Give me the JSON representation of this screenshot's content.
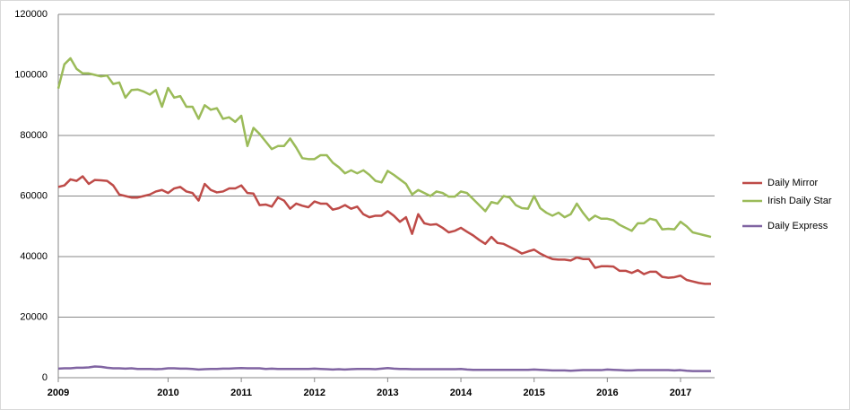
{
  "chart_data": {
    "type": "line",
    "categories": [
      "2009",
      null,
      null,
      null,
      null,
      null,
      null,
      null,
      null,
      null,
      null,
      null,
      null,
      null,
      null,
      null,
      null,
      null,
      "2010",
      null,
      null,
      null,
      null,
      null,
      null,
      null,
      null,
      null,
      null,
      null,
      "2011",
      null,
      null,
      null,
      null,
      null,
      null,
      null,
      null,
      null,
      null,
      null,
      "2012",
      null,
      null,
      null,
      null,
      null,
      null,
      null,
      null,
      null,
      null,
      null,
      "2013",
      null,
      null,
      null,
      null,
      null,
      null,
      null,
      null,
      null,
      null,
      null,
      "2014",
      null,
      null,
      null,
      null,
      null,
      null,
      null,
      null,
      null,
      null,
      null,
      "2015",
      null,
      null,
      null,
      null,
      null,
      null,
      null,
      null,
      null,
      null,
      null,
      "2016",
      null,
      null,
      null,
      null,
      null,
      null,
      null,
      null,
      null,
      null,
      null,
      "2017",
      null,
      null,
      null,
      null,
      null
    ],
    "series": [
      {
        "name": "Daily Mirror",
        "color": "#be4b48",
        "values": [
          63000,
          63500,
          65500,
          65000,
          66500,
          64000,
          65300,
          65200,
          65000,
          63500,
          60500,
          60000,
          59500,
          59500,
          60000,
          60500,
          61500,
          62000,
          61000,
          62500,
          63000,
          61500,
          61000,
          58500,
          64000,
          62000,
          61200,
          61500,
          62500,
          62500,
          63500,
          61000,
          60800,
          57000,
          57200,
          56500,
          59500,
          58500,
          55800,
          57500,
          56800,
          56300,
          58200,
          57500,
          57500,
          55500,
          56000,
          57000,
          55800,
          56500,
          54000,
          53000,
          53500,
          53500,
          55000,
          53500,
          51500,
          53000,
          47500,
          54000,
          51000,
          50500,
          50700,
          49500,
          48000,
          48500,
          49500,
          48200,
          47000,
          45500,
          44200,
          46500,
          44500,
          44200,
          43200,
          42200,
          41000,
          41700,
          42300,
          41000,
          40000,
          39200,
          39000,
          39000,
          38700,
          39700,
          39200,
          39200,
          36300,
          36800,
          36800,
          36700,
          35300,
          35300,
          34600,
          35500,
          34200,
          35000,
          35000,
          33300,
          33000,
          33200,
          33700,
          32300,
          31800,
          31300,
          31000,
          31000
        ]
      },
      {
        "name": "Irish Daily Star",
        "color": "#9bbb59",
        "values": [
          95500,
          103500,
          105500,
          102000,
          100500,
          100500,
          100000,
          99500,
          99800,
          97000,
          97500,
          92500,
          95000,
          95200,
          94500,
          93500,
          95000,
          89500,
          95700,
          92500,
          93000,
          89500,
          89500,
          85500,
          90000,
          88500,
          89000,
          85500,
          86000,
          84500,
          86500,
          76500,
          82500,
          80500,
          78000,
          75500,
          76500,
          76500,
          79000,
          76000,
          72500,
          72200,
          72200,
          73500,
          73500,
          71000,
          69500,
          67500,
          68500,
          67500,
          68500,
          67000,
          65000,
          64500,
          68300,
          67000,
          65500,
          64000,
          60500,
          62000,
          61000,
          60000,
          61500,
          61000,
          59800,
          59800,
          61500,
          61000,
          59000,
          57000,
          55000,
          58000,
          57500,
          60000,
          59500,
          57000,
          56000,
          55800,
          60000,
          56000,
          54500,
          53500,
          54500,
          53000,
          54000,
          57500,
          54500,
          52000,
          53500,
          52500,
          52500,
          52000,
          50500,
          49500,
          48500,
          51000,
          51000,
          52500,
          52000,
          49000,
          49200,
          49000,
          51500,
          50000,
          48000,
          47500,
          47000,
          46500
        ]
      },
      {
        "name": "Daily Express",
        "color": "#8064a2",
        "values": [
          3000,
          3100,
          3100,
          3300,
          3300,
          3400,
          3700,
          3600,
          3300,
          3100,
          3100,
          3000,
          3100,
          2900,
          2900,
          2900,
          2800,
          2900,
          3100,
          3100,
          3000,
          3000,
          2900,
          2700,
          2800,
          2900,
          2900,
          3000,
          3000,
          3100,
          3200,
          3100,
          3100,
          3100,
          2900,
          3000,
          2900,
          2900,
          2900,
          2900,
          2900,
          2900,
          3000,
          2900,
          2800,
          2700,
          2800,
          2700,
          2800,
          2900,
          2900,
          2900,
          2800,
          3000,
          3200,
          3000,
          2900,
          2900,
          2800,
          2800,
          2800,
          2800,
          2800,
          2800,
          2800,
          2800,
          2900,
          2700,
          2600,
          2600,
          2600,
          2600,
          2600,
          2600,
          2600,
          2600,
          2600,
          2600,
          2700,
          2600,
          2500,
          2400,
          2400,
          2400,
          2300,
          2400,
          2500,
          2500,
          2500,
          2500,
          2700,
          2600,
          2500,
          2400,
          2400,
          2500,
          2500,
          2500,
          2500,
          2500,
          2500,
          2400,
          2500,
          2300,
          2200,
          2200,
          2200,
          2200
        ]
      }
    ],
    "ylim": [
      0,
      120000
    ],
    "yticks": [
      0,
      20000,
      40000,
      60000,
      80000,
      100000,
      120000
    ],
    "grid": true,
    "legend": "right"
  }
}
